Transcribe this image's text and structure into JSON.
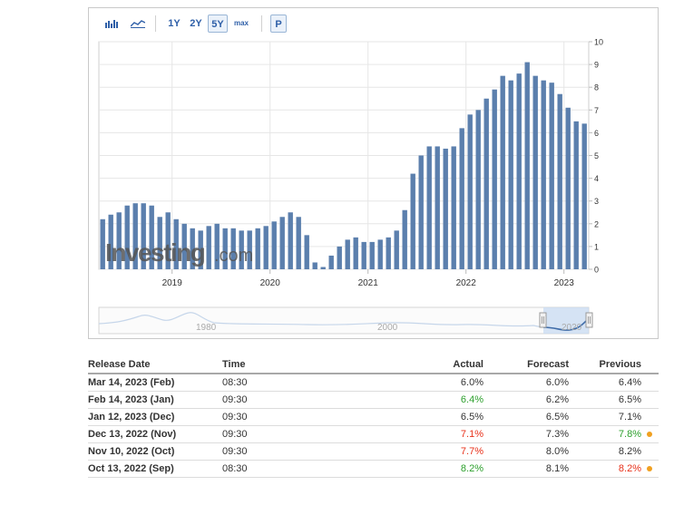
{
  "toolbar": {
    "bar_chart_icon": "bar-chart-icon",
    "line_chart_icon": "line-chart-icon",
    "ranges": [
      "1Y",
      "2Y",
      "5Y",
      "max"
    ],
    "active_range": "5Y",
    "percent_label": "P"
  },
  "colors": {
    "bar": "#5b7fad",
    "navigator_line": "#b9cce2",
    "navigator_selection": "#c8dbf2",
    "grid": "#e6e6e6",
    "green": "#2da02d",
    "red": "#e8311a",
    "dot": "#f0a020"
  },
  "watermark": {
    "brand": "Investing",
    "suffix": ".com"
  },
  "chart_data": {
    "type": "bar",
    "title": "",
    "xlabel": "",
    "ylabel": "",
    "ylim": [
      0,
      10
    ],
    "y_ticks": [
      0,
      1,
      2,
      3,
      4,
      5,
      6,
      7,
      8,
      9,
      10
    ],
    "x_ticks": [
      "2019",
      "2020",
      "2021",
      "2022",
      "2023"
    ],
    "grid": true,
    "y_axis_side": "right",
    "series": [
      {
        "values": [
          2.2,
          2.4,
          2.5,
          2.8,
          2.9,
          2.9,
          2.8,
          2.3,
          2.5,
          2.2,
          2.0,
          1.8,
          1.7,
          1.9,
          2.0,
          1.8,
          1.8,
          1.7,
          1.7,
          1.8,
          1.9,
          2.1,
          2.3,
          2.5,
          2.3,
          1.5,
          0.3,
          0.1,
          0.6,
          1.0,
          1.3,
          1.4,
          1.2,
          1.2,
          1.3,
          1.4,
          1.7,
          2.6,
          4.2,
          5.0,
          5.4,
          5.4,
          5.3,
          5.4,
          6.2,
          6.8,
          7.0,
          7.5,
          7.9,
          8.5,
          8.3,
          8.6,
          9.1,
          8.5,
          8.3,
          8.2,
          7.7,
          7.1,
          6.5,
          6.4
        ]
      }
    ],
    "navigator_labels": [
      "1980",
      "2000",
      "2020"
    ]
  },
  "table": {
    "headers": [
      "Release Date",
      "Time",
      "Actual",
      "Forecast",
      "Previous"
    ],
    "rows": [
      {
        "date": "Mar 14, 2023 (Feb)",
        "time": "08:30",
        "actual": "6.0%",
        "actual_color": "",
        "forecast": "6.0%",
        "previous": "6.4%",
        "previous_color": "",
        "revised": false
      },
      {
        "date": "Feb 14, 2023 (Jan)",
        "time": "09:30",
        "actual": "6.4%",
        "actual_color": "green",
        "forecast": "6.2%",
        "previous": "6.5%",
        "previous_color": "",
        "revised": false
      },
      {
        "date": "Jan 12, 2023 (Dec)",
        "time": "09:30",
        "actual": "6.5%",
        "actual_color": "",
        "forecast": "6.5%",
        "previous": "7.1%",
        "previous_color": "",
        "revised": false
      },
      {
        "date": "Dec 13, 2022 (Nov)",
        "time": "09:30",
        "actual": "7.1%",
        "actual_color": "red",
        "forecast": "7.3%",
        "previous": "7.8%",
        "previous_color": "green",
        "revised": true
      },
      {
        "date": "Nov 10, 2022 (Oct)",
        "time": "09:30",
        "actual": "7.7%",
        "actual_color": "red",
        "forecast": "8.0%",
        "previous": "8.2%",
        "previous_color": "",
        "revised": false
      },
      {
        "date": "Oct 13, 2022 (Sep)",
        "time": "08:30",
        "actual": "8.2%",
        "actual_color": "green",
        "forecast": "8.1%",
        "previous": "8.2%",
        "previous_color": "red",
        "revised": true
      }
    ]
  }
}
